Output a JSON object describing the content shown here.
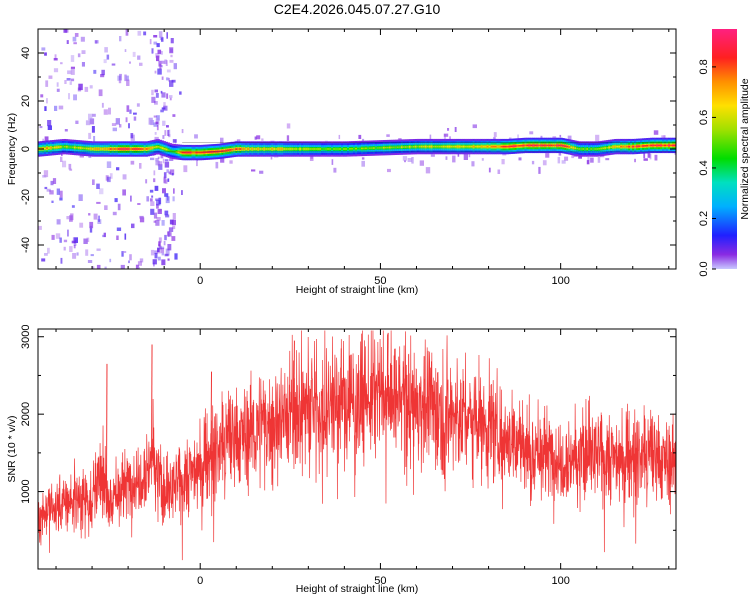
{
  "figure": {
    "title": "C2E4.2026.045.07.27.G10"
  },
  "chart_data": [
    {
      "type": "heatmap",
      "title": "C2E4.2026.045.07.27.G10",
      "xlabel": "Height of straight line (km)",
      "ylabel": "Frequency (Hz)",
      "xlim": [
        -45,
        132
      ],
      "ylim": [
        -50,
        50
      ],
      "xticks": [
        0,
        50,
        100
      ],
      "yticks": [
        -40,
        -20,
        0,
        20,
        40
      ],
      "colorbar": {
        "label": "Normalized spectral amplitude",
        "range": [
          0,
          0.95
        ],
        "ticks": [
          0.0,
          0.2,
          0.4,
          0.6,
          0.8
        ]
      },
      "signal_band": {
        "x": [
          -45,
          -38,
          -30,
          -25,
          -20,
          -15,
          -12,
          -10,
          -8,
          -5,
          0,
          5,
          10,
          15,
          20,
          30,
          40,
          50,
          60,
          70,
          80,
          85,
          90,
          100,
          105,
          110,
          115,
          120,
          125,
          132
        ],
        "center_freq": [
          0,
          1,
          0,
          0,
          0,
          0,
          1,
          0,
          -1,
          -1.5,
          -1.5,
          -1,
          0,
          0,
          0,
          0,
          0,
          0.5,
          1,
          1,
          1,
          1,
          1.5,
          1.5,
          0,
          0,
          1,
          1,
          1.5,
          1.5
        ],
        "peak_amplitude": [
          0.85,
          0.6,
          0.7,
          0.9,
          0.95,
          0.85,
          0.6,
          0.7,
          0.5,
          0.9,
          0.95,
          0.9,
          0.92,
          0.7,
          0.75,
          0.6,
          0.55,
          0.6,
          0.65,
          0.7,
          0.75,
          0.95,
          0.95,
          0.95,
          0.6,
          0.55,
          0.75,
          0.92,
          0.95,
          0.95
        ]
      },
      "grid": false,
      "legend": "colorbar right"
    },
    {
      "type": "line",
      "xlabel": "Height of straight line (km)",
      "ylabel": "SNR (10 * v/v)",
      "xlim": [
        -45,
        132
      ],
      "ylim": [
        0,
        3100
      ],
      "xticks": [
        0,
        50,
        100
      ],
      "yticks": [
        1000,
        2000,
        3000
      ],
      "color": "#ef3535",
      "series": [
        {
          "x": [
            -45,
            -40,
            -35,
            -30,
            -27,
            -25,
            -20,
            -15,
            -13,
            -10,
            -5,
            0,
            5,
            10,
            15,
            20,
            25,
            30,
            35,
            40,
            45,
            50,
            55,
            60,
            65,
            70,
            75,
            80,
            85,
            90,
            95,
            100,
            105,
            110,
            115,
            120,
            125,
            130,
            132
          ],
          "values": [
            700,
            800,
            900,
            950,
            1200,
            900,
            1100,
            1300,
            1500,
            900,
            1150,
            1350,
            1550,
            1700,
            1800,
            1900,
            2050,
            2100,
            2150,
            2150,
            2200,
            2250,
            2200,
            2150,
            2050,
            2000,
            1950,
            1850,
            1750,
            1550,
            1500,
            1450,
            1450,
            1450,
            1450,
            1450,
            1450,
            1400,
            1350
          ]
        }
      ],
      "spikes": {
        "x": [
          -26,
          -13.5,
          3,
          26,
          39,
          52,
          62
        ],
        "values": [
          2650,
          2900,
          2550,
          2950,
          2850,
          3050,
          2750
        ]
      },
      "grid": false
    }
  ]
}
